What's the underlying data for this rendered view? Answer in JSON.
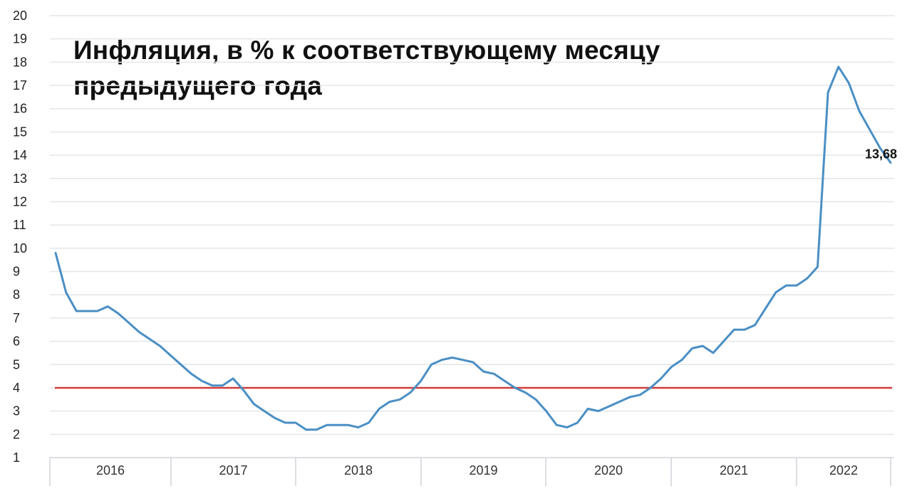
{
  "chart_data": {
    "type": "line",
    "title_lines": [
      "Инфляция, в % к соответствующему месяцу",
      "предыдущего года"
    ],
    "xlabel": "",
    "ylabel": "",
    "ylim": [
      1,
      20
    ],
    "y_ticks": [
      1,
      2,
      3,
      4,
      5,
      6,
      7,
      8,
      9,
      10,
      11,
      12,
      13,
      14,
      15,
      16,
      17,
      18,
      19,
      20
    ],
    "year_labels": [
      "2016",
      "2017",
      "2018",
      "2019",
      "2020",
      "2021",
      "2022"
    ],
    "x_start": "2016-01",
    "grid": true,
    "series": [
      {
        "color": "#4a8fc4",
        "values": [
          9.8,
          8.1,
          7.3,
          7.3,
          7.3,
          7.5,
          7.2,
          6.8,
          6.4,
          6.1,
          5.8,
          5.4,
          5.0,
          4.6,
          4.3,
          4.1,
          4.1,
          4.4,
          3.9,
          3.3,
          3.0,
          2.7,
          2.5,
          2.5,
          2.2,
          2.2,
          2.4,
          2.4,
          2.4,
          2.3,
          2.5,
          3.1,
          3.4,
          3.5,
          3.8,
          4.3,
          5.0,
          5.2,
          5.3,
          5.2,
          5.1,
          4.7,
          4.6,
          4.3,
          4.0,
          3.8,
          3.5,
          3.0,
          2.4,
          2.3,
          2.5,
          3.1,
          3.0,
          3.2,
          3.4,
          3.6,
          3.7,
          4.0,
          4.4,
          4.9,
          5.2,
          5.7,
          5.8,
          5.5,
          6.0,
          6.5,
          6.5,
          6.7,
          7.4,
          8.1,
          8.4,
          8.4,
          8.7,
          9.2,
          16.7,
          17.8,
          17.1,
          15.9,
          15.1,
          14.3,
          13.68
        ]
      }
    ],
    "reference_line": {
      "value": 4,
      "color": "#d23a3a"
    },
    "last_value_label": "13,68"
  }
}
